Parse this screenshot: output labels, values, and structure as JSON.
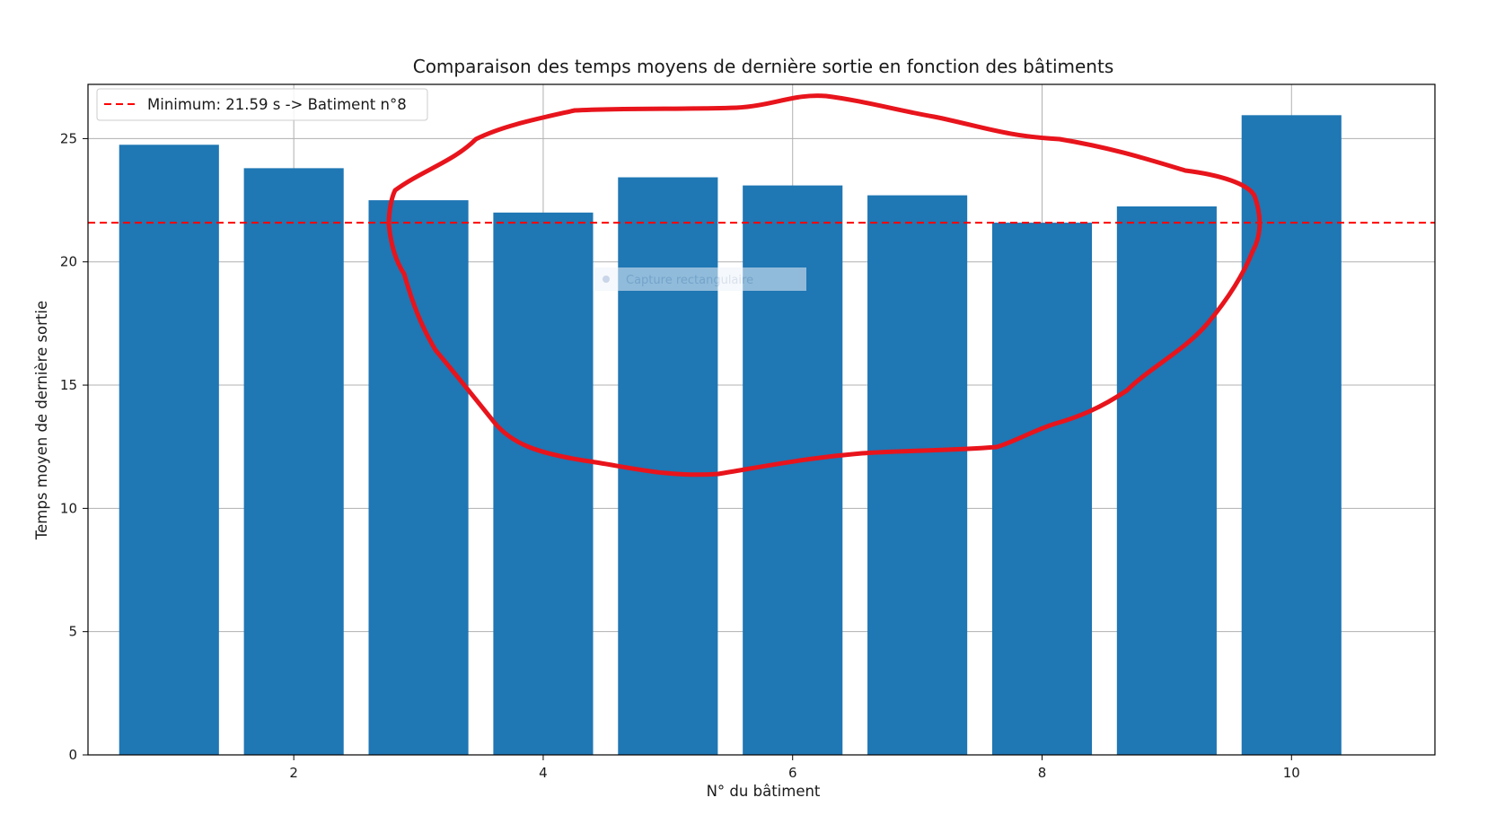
{
  "chart_data": {
    "type": "bar",
    "title": "Comparaison des temps moyens de dernière sortie en fonction des bâtiments",
    "xlabel": "N° du bâtiment",
    "ylabel": "Temps moyen de dernière sortie",
    "x": [
      1,
      2,
      3,
      4,
      5,
      6,
      7,
      8,
      9,
      10
    ],
    "values": [
      24.75,
      23.8,
      22.5,
      22.0,
      23.43,
      23.1,
      22.7,
      21.59,
      22.25,
      25.95
    ],
    "xlim": [
      0.35,
      11.15
    ],
    "ylim": [
      0,
      27.2
    ],
    "xticks": [
      2,
      4,
      6,
      8,
      10
    ],
    "yticks": [
      0,
      5,
      10,
      15,
      20,
      25
    ],
    "grid": true,
    "bar_color": "#1f77b4",
    "reference_line": {
      "y": 21.59,
      "color": "#ff0000",
      "style": "dashed",
      "label": "Minimum: 21.59 s -> Batiment n°8"
    },
    "legend_position": "top-left"
  },
  "annotation": {
    "type": "hand-drawn-circle",
    "color": "#e8141c",
    "encloses": [
      3,
      4,
      5,
      6,
      7,
      8,
      9
    ]
  },
  "overlay_tooltip": "Capture rectangulaire"
}
